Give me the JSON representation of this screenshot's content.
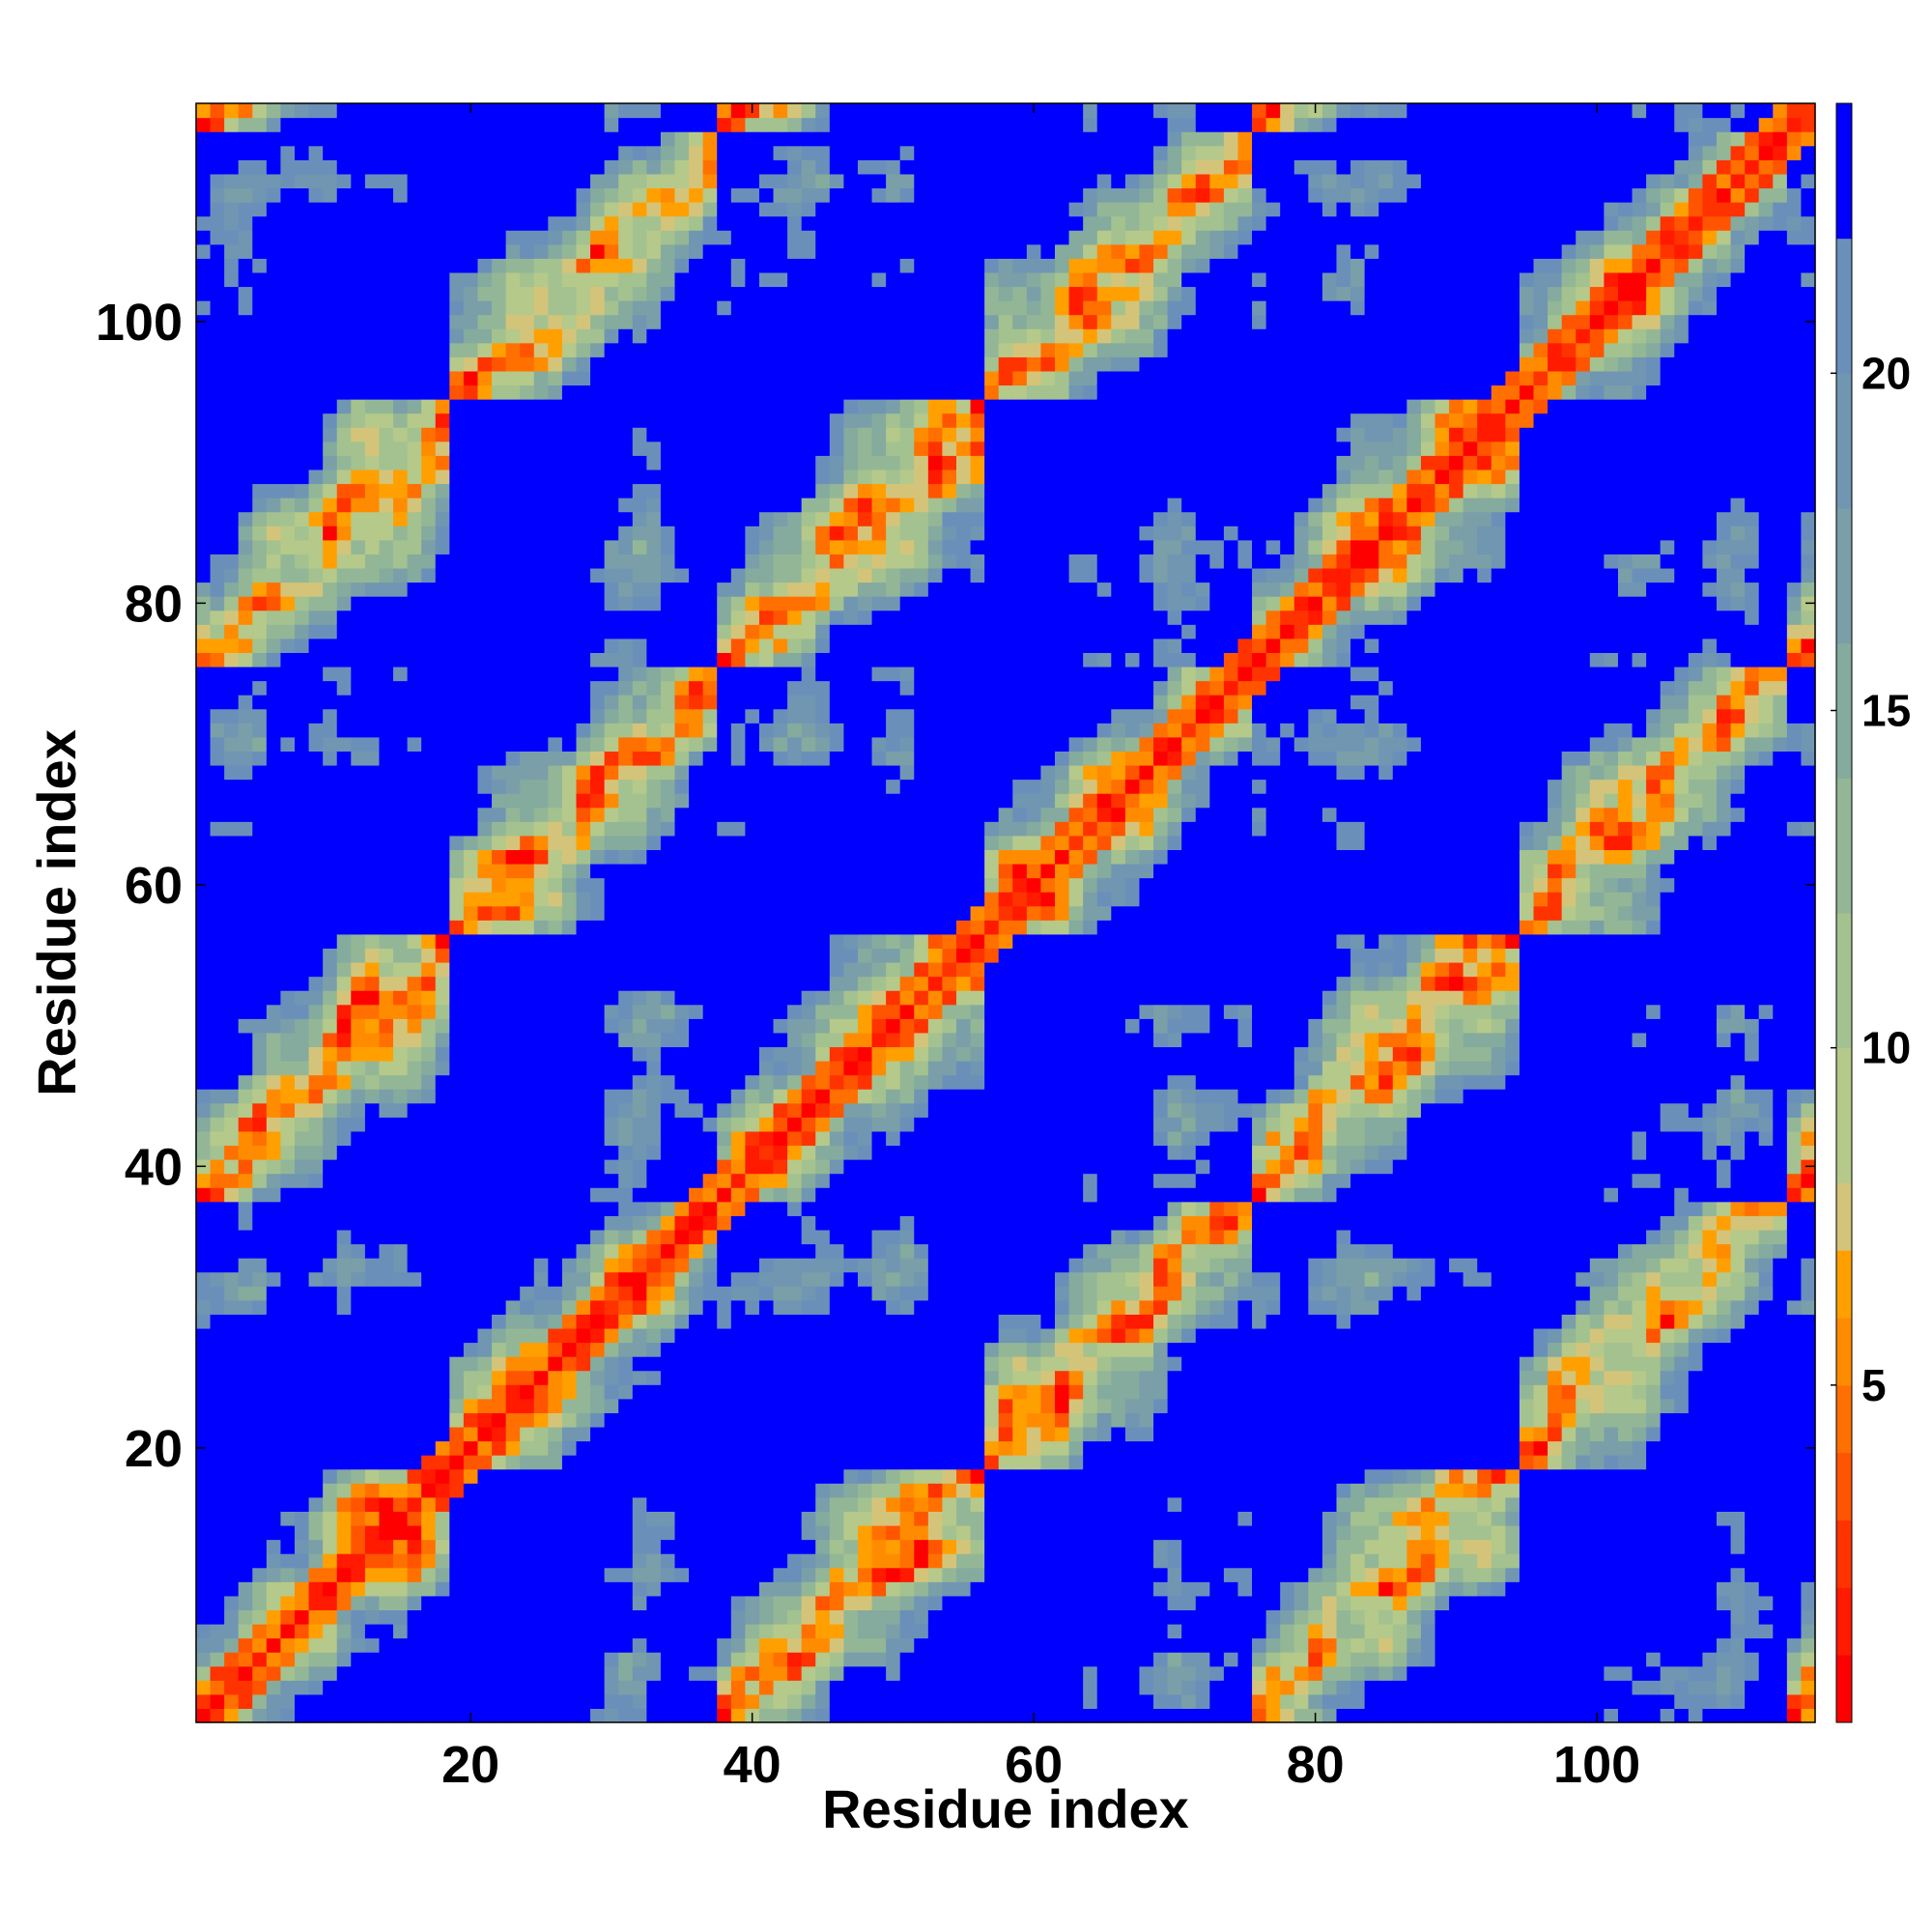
{
  "chart_data": {
    "type": "heatmap",
    "title": "",
    "xlabel": "Residue index",
    "ylabel": "Residue index",
    "n_residues": 115,
    "xlim": [
      1,
      115
    ],
    "ylim": [
      1,
      115
    ],
    "x_ticks": [
      "20",
      "40",
      "60",
      "80",
      "100"
    ],
    "y_ticks": [
      "20",
      "40",
      "60",
      "80",
      "100"
    ],
    "colorbar": {
      "range": [
        0,
        24
      ],
      "ticks": [
        "5",
        "10",
        "15",
        "20"
      ],
      "above_max_color": "#0000ff",
      "bins": [
        {
          "max": 1,
          "color": "#ff0000"
        },
        {
          "max": 2,
          "color": "#ff1a00"
        },
        {
          "max": 3,
          "color": "#ff3300"
        },
        {
          "max": 4,
          "color": "#ff5500"
        },
        {
          "max": 5,
          "color": "#ff7000"
        },
        {
          "max": 6,
          "color": "#ff8c00"
        },
        {
          "max": 7,
          "color": "#ffa000"
        },
        {
          "max": 8,
          "color": "#d4c47a"
        },
        {
          "max": 10,
          "color": "#b5c98a"
        },
        {
          "max": 12,
          "color": "#a3c28f"
        },
        {
          "max": 14,
          "color": "#93b796"
        },
        {
          "max": 16,
          "color": "#85aa9e"
        },
        {
          "max": 18,
          "color": "#7a9fa9"
        },
        {
          "max": 20,
          "color": "#7096b2"
        },
        {
          "max": 22,
          "color": "#6a90ba"
        },
        {
          "max": 24,
          "color": "#0000ff"
        }
      ]
    },
    "description_of_structure": "Symmetric residue-residue distance map (Angstrom) with main diagonal near zero, off-diagonal contacts and large blue (distant) regions"
  }
}
